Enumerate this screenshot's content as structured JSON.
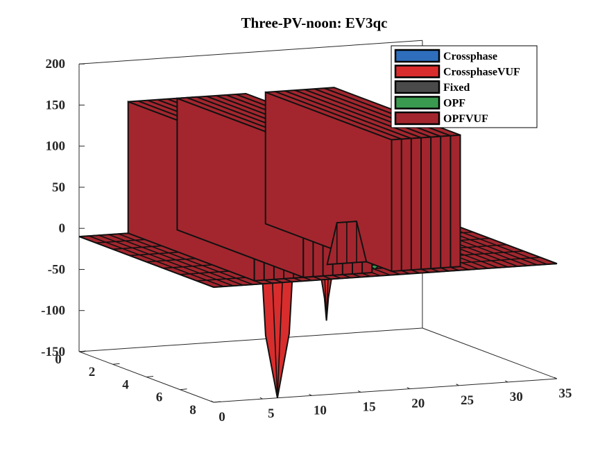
{
  "chart_data": {
    "type": "surface3d",
    "title": "Three-PV-noon: EV3qc",
    "xlabel": "",
    "ylabel": "",
    "zlabel": "",
    "x_ticks": [
      "0",
      "5",
      "10",
      "15",
      "20",
      "25",
      "30",
      "35"
    ],
    "y_ticks": [
      "0",
      "2",
      "4",
      "6",
      "8"
    ],
    "z_ticks": [
      "-150",
      "-100",
      "-50",
      "0",
      "50",
      "100",
      "150",
      "200"
    ],
    "xlim": [
      0,
      35
    ],
    "ylim": [
      0,
      8
    ],
    "zlim": [
      -150,
      200
    ],
    "legend_position": "top-right",
    "legend": [
      {
        "name": "Crossphase",
        "color": "#2e6ebc"
      },
      {
        "name": "CrossphaseVUF",
        "color": "#d92d2d"
      },
      {
        "name": "Fixed",
        "color": "#4a4a4a"
      },
      {
        "name": "OPF",
        "color": "#3a9a4f"
      },
      {
        "name": "OPFVUF",
        "color": "#a3262e"
      }
    ],
    "walls": [
      {
        "series": "OPFVUF",
        "x_start": 5,
        "x_end": 12,
        "height": 150
      },
      {
        "series": "OPFVUF",
        "x_start": 10,
        "x_end": 17,
        "height": 150
      },
      {
        "series": "OPFVUF",
        "x_start": 19,
        "x_end": 26,
        "height": 150
      }
    ],
    "bumps": [
      {
        "series": "OPFVUF",
        "x_start": 15,
        "x_end": 19,
        "height": 15
      }
    ],
    "dips": [
      {
        "series": "CrossphaseVUF",
        "x_start": 5,
        "x_end": 8,
        "depth": -150
      },
      {
        "series": "CrossphaseVUF",
        "x_start": 11,
        "x_end": 12,
        "depth": -60
      }
    ],
    "small_peaks": [
      {
        "series": "OPF",
        "x": 11,
        "height": -45
      },
      {
        "series": "OPF",
        "x": 14,
        "height": -40
      },
      {
        "series": "OPF",
        "x": 19,
        "height": -45
      }
    ],
    "baseline_z": -10
  }
}
